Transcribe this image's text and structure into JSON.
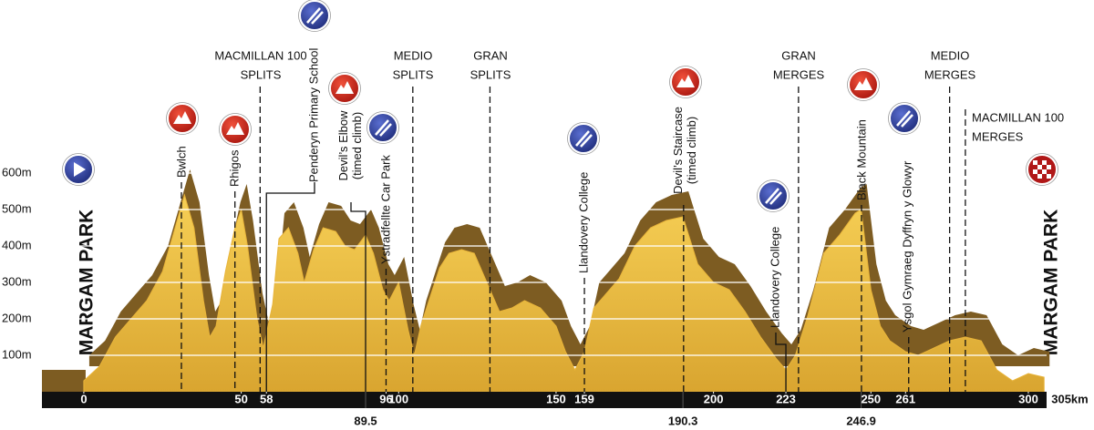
{
  "chart_data": {
    "type": "area",
    "x": [
      0,
      5,
      10,
      15,
      20,
      25,
      30,
      32,
      35,
      38,
      40,
      42,
      45,
      48,
      50,
      52,
      55,
      57,
      60,
      62,
      65,
      68,
      70,
      73,
      76,
      80,
      83,
      86,
      89.5,
      92,
      95,
      97,
      100,
      103,
      105,
      107,
      110,
      113,
      116,
      120,
      124,
      128,
      132,
      136,
      140,
      145,
      150,
      153,
      156,
      159,
      162,
      165,
      170,
      175,
      180,
      185,
      190.3,
      195,
      200,
      205,
      210,
      215,
      220,
      223,
      226,
      230,
      235,
      240,
      245,
      246.9,
      250,
      253,
      256,
      261,
      265,
      270,
      275,
      280,
      285,
      290,
      295,
      300,
      305
    ],
    "values": [
      30,
      70,
      150,
      200,
      250,
      330,
      480,
      540,
      450,
      250,
      150,
      180,
      330,
      450,
      500,
      400,
      200,
      120,
      240,
      420,
      450,
      380,
      300,
      390,
      450,
      440,
      400,
      390,
      430,
      380,
      280,
      250,
      300,
      170,
      100,
      180,
      260,
      340,
      380,
      390,
      380,
      300,
      220,
      230,
      250,
      230,
      180,
      110,
      60,
      110,
      230,
      260,
      310,
      400,
      450,
      470,
      480,
      350,
      300,
      280,
      220,
      150,
      90,
      60,
      100,
      210,
      380,
      430,
      490,
      500,
      280,
      180,
      140,
      110,
      100,
      120,
      140,
      150,
      140,
      60,
      30,
      50,
      40
    ],
    "color": "#e8b43a",
    "xlim": [
      -13.3,
      305.8
    ],
    "ylim": [
      0,
      600
    ],
    "yticks": [
      {
        "value": 100,
        "label": "100m"
      },
      {
        "value": 200,
        "label": "200m"
      },
      {
        "value": 300,
        "label": "300m"
      },
      {
        "value": 400,
        "label": "400m"
      },
      {
        "value": 500,
        "label": "500m"
      },
      {
        "value": 600,
        "label": "600m"
      }
    ],
    "xticks": [
      0,
      50,
      58,
      96,
      100,
      150,
      159,
      200,
      223,
      250,
      261,
      300,
      {
        "value": 305,
        "label": "305km"
      }
    ],
    "xticks2": [
      89.5,
      190.3,
      246.9
    ],
    "grid": true,
    "start_label": "MARGAM PARK",
    "finish_label": "MARGAM PARK",
    "annotations": [
      {
        "x": 31,
        "label": [
          "Bwlch"
        ],
        "icon": "climb"
      },
      {
        "x": 48,
        "label": [
          "Rhigos"
        ],
        "icon": "climb"
      },
      {
        "x": 56,
        "label": [
          "MACMILLAN 100",
          "SPLITS"
        ]
      },
      {
        "x": 58,
        "label": [
          "Penderyn Primary School"
        ],
        "icon": "food"
      },
      {
        "x": 89.5,
        "label": [
          "Devil’s Elbow",
          "(timed climb)"
        ],
        "icon": "climb"
      },
      {
        "x": 96,
        "label": [
          "Ystradfellte Car Park"
        ],
        "icon": "food"
      },
      {
        "x": 104.5,
        "label": [
          "MEDIO",
          "SPLITS"
        ]
      },
      {
        "x": 129,
        "label": [
          "GRAN",
          "SPLITS"
        ]
      },
      {
        "x": 159,
        "label": [
          "Llandovery College"
        ],
        "icon": "food"
      },
      {
        "x": 190.5,
        "label": [
          "Devil’s Staircase",
          "(timed climb)"
        ],
        "icon": "climb"
      },
      {
        "x": 223,
        "label": [
          "Llandovery College"
        ],
        "icon": "food"
      },
      {
        "x": 227,
        "label": [
          "GRAN",
          "MERGES"
        ]
      },
      {
        "x": 247,
        "label": [
          "Black Mountain"
        ],
        "icon": "climb"
      },
      {
        "x": 262,
        "label": [
          "Ysgol Gymraeg Dyffryn y Glowyr"
        ],
        "icon": "food"
      },
      {
        "x": 275,
        "label": [
          "MEDIO",
          "MERGES"
        ]
      },
      {
        "x": 280,
        "label": [
          "MACMILLAN 100",
          "MERGES"
        ]
      }
    ]
  }
}
